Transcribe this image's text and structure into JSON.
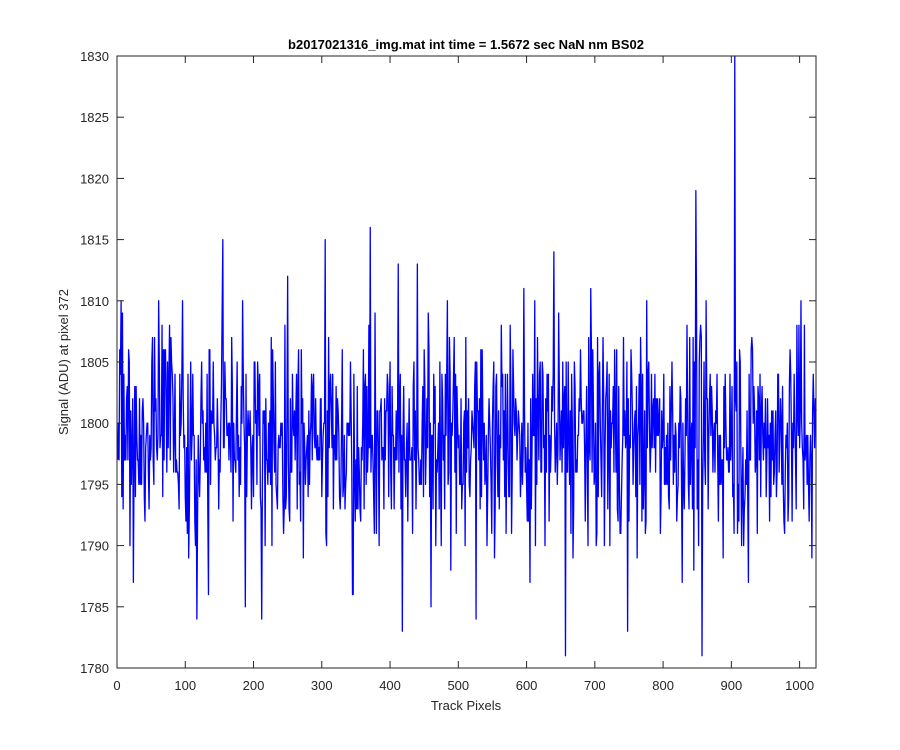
{
  "chart_data": {
    "type": "line",
    "title": "b2017021316_img.mat int time = 1.5672 sec  NaN nm BS02",
    "xlabel": "Track Pixels",
    "ylabel": "Signal (ADU) at pixel 372",
    "xlim": [
      0,
      1024
    ],
    "ylim": [
      1780,
      1830
    ],
    "xticks": [
      0,
      100,
      200,
      300,
      400,
      500,
      600,
      700,
      800,
      900,
      1000
    ],
    "yticks": [
      1780,
      1785,
      1790,
      1795,
      1800,
      1805,
      1810,
      1815,
      1820,
      1825,
      1830
    ],
    "grid": false,
    "legend": false,
    "series": [
      {
        "color": "#0000ff",
        "x_start": 1,
        "x_step": 1,
        "n_points": 1024,
        "mean": 1799,
        "std": 4.5,
        "range": [
          1781,
          1830
        ],
        "notable_points": [
          {
            "x": 1,
            "y": 1797
          },
          {
            "x": 8,
            "y": 1809
          },
          {
            "x": 24,
            "y": 1787
          },
          {
            "x": 96,
            "y": 1810
          },
          {
            "x": 117,
            "y": 1784
          },
          {
            "x": 134,
            "y": 1786
          },
          {
            "x": 155,
            "y": 1815
          },
          {
            "x": 188,
            "y": 1785
          },
          {
            "x": 212,
            "y": 1784
          },
          {
            "x": 250,
            "y": 1812
          },
          {
            "x": 305,
            "y": 1815
          },
          {
            "x": 345,
            "y": 1786
          },
          {
            "x": 371,
            "y": 1816
          },
          {
            "x": 418,
            "y": 1783
          },
          {
            "x": 440,
            "y": 1813
          },
          {
            "x": 460,
            "y": 1785
          },
          {
            "x": 526,
            "y": 1784
          },
          {
            "x": 605,
            "y": 1787
          },
          {
            "x": 640,
            "y": 1814
          },
          {
            "x": 657,
            "y": 1781
          },
          {
            "x": 748,
            "y": 1783
          },
          {
            "x": 848,
            "y": 1819
          },
          {
            "x": 857,
            "y": 1781
          },
          {
            "x": 905,
            "y": 1830
          },
          {
            "x": 925,
            "y": 1787
          },
          {
            "x": 1002,
            "y": 1810
          },
          {
            "x": 1018,
            "y": 1789
          }
        ]
      }
    ]
  }
}
